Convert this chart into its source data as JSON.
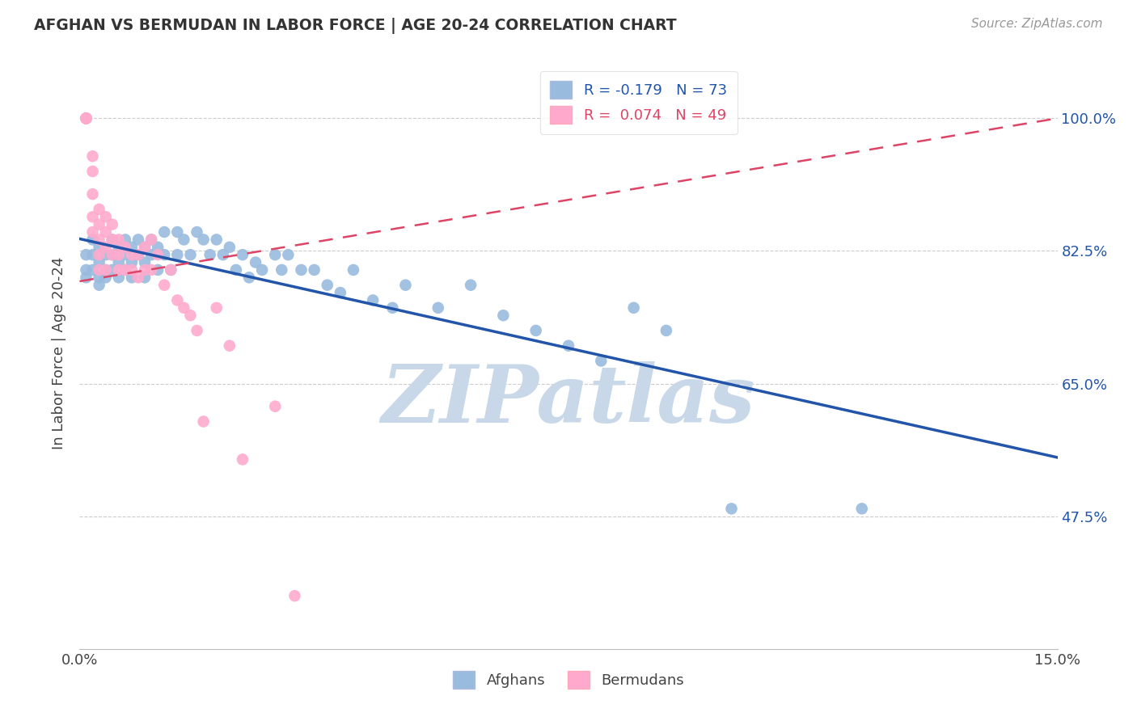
{
  "title": "AFGHAN VS BERMUDAN IN LABOR FORCE | AGE 20-24 CORRELATION CHART",
  "source_text": "Source: ZipAtlas.com",
  "ylabel": "In Labor Force | Age 20-24",
  "xlim": [
    0.0,
    0.15
  ],
  "ylim": [
    0.3,
    1.08
  ],
  "xticks": [
    0.0,
    0.03,
    0.06,
    0.09,
    0.12,
    0.15
  ],
  "xticklabels": [
    "0.0%",
    "",
    "",
    "",
    "",
    "15.0%"
  ],
  "yticks": [
    0.475,
    0.65,
    0.825,
    1.0
  ],
  "yticklabels": [
    "47.5%",
    "65.0%",
    "82.5%",
    "100.0%"
  ],
  "legend_blue_label": "R = -0.179   N = 73",
  "legend_pink_label": "R =  0.074   N = 49",
  "afghans_x": [
    0.001,
    0.001,
    0.001,
    0.002,
    0.002,
    0.002,
    0.003,
    0.003,
    0.003,
    0.003,
    0.004,
    0.004,
    0.004,
    0.005,
    0.005,
    0.005,
    0.006,
    0.006,
    0.006,
    0.007,
    0.007,
    0.007,
    0.008,
    0.008,
    0.008,
    0.009,
    0.009,
    0.01,
    0.01,
    0.01,
    0.011,
    0.011,
    0.012,
    0.012,
    0.013,
    0.013,
    0.014,
    0.015,
    0.015,
    0.016,
    0.017,
    0.018,
    0.019,
    0.02,
    0.021,
    0.022,
    0.023,
    0.024,
    0.025,
    0.026,
    0.027,
    0.028,
    0.03,
    0.031,
    0.032,
    0.034,
    0.036,
    0.038,
    0.04,
    0.042,
    0.045,
    0.048,
    0.05,
    0.055,
    0.06,
    0.065,
    0.07,
    0.075,
    0.08,
    0.085,
    0.09,
    0.1,
    0.12
  ],
  "afghans_y": [
    0.82,
    0.8,
    0.79,
    0.84,
    0.82,
    0.8,
    0.83,
    0.81,
    0.79,
    0.78,
    0.82,
    0.8,
    0.79,
    0.84,
    0.82,
    0.8,
    0.83,
    0.81,
    0.79,
    0.84,
    0.82,
    0.8,
    0.83,
    0.81,
    0.79,
    0.84,
    0.82,
    0.83,
    0.81,
    0.79,
    0.84,
    0.82,
    0.83,
    0.8,
    0.85,
    0.82,
    0.8,
    0.85,
    0.82,
    0.84,
    0.82,
    0.85,
    0.84,
    0.82,
    0.84,
    0.82,
    0.83,
    0.8,
    0.82,
    0.79,
    0.81,
    0.8,
    0.82,
    0.8,
    0.82,
    0.8,
    0.8,
    0.78,
    0.77,
    0.8,
    0.76,
    0.75,
    0.78,
    0.75,
    0.78,
    0.74,
    0.72,
    0.7,
    0.68,
    0.75,
    0.72,
    0.485,
    0.485
  ],
  "bermudans_x": [
    0.001,
    0.001,
    0.001,
    0.001,
    0.001,
    0.001,
    0.002,
    0.002,
    0.002,
    0.002,
    0.002,
    0.003,
    0.003,
    0.003,
    0.003,
    0.003,
    0.004,
    0.004,
    0.004,
    0.004,
    0.005,
    0.005,
    0.005,
    0.006,
    0.006,
    0.006,
    0.007,
    0.007,
    0.008,
    0.008,
    0.009,
    0.009,
    0.01,
    0.01,
    0.011,
    0.011,
    0.012,
    0.013,
    0.014,
    0.015,
    0.016,
    0.017,
    0.018,
    0.019,
    0.021,
    0.023,
    0.025,
    0.03,
    0.033
  ],
  "bermudans_y": [
    1.0,
    1.0,
    1.0,
    1.0,
    1.0,
    1.0,
    0.95,
    0.93,
    0.9,
    0.87,
    0.85,
    0.88,
    0.86,
    0.84,
    0.82,
    0.8,
    0.87,
    0.85,
    0.83,
    0.8,
    0.86,
    0.84,
    0.82,
    0.84,
    0.82,
    0.8,
    0.83,
    0.8,
    0.82,
    0.8,
    0.82,
    0.79,
    0.83,
    0.8,
    0.84,
    0.8,
    0.82,
    0.78,
    0.8,
    0.76,
    0.75,
    0.74,
    0.72,
    0.6,
    0.75,
    0.7,
    0.55,
    0.62,
    0.37
  ],
  "blue_scatter_color": "#99BBDD",
  "pink_scatter_color": "#FFAACC",
  "blue_line_color": "#2255AA",
  "pink_line_color": "#DD4466",
  "watermark_color": "#C8D8E8",
  "background_color": "#FFFFFF",
  "grid_color": "#CCCCCC",
  "bottom_legend_labels": [
    "Afghans",
    "Bermudans"
  ]
}
